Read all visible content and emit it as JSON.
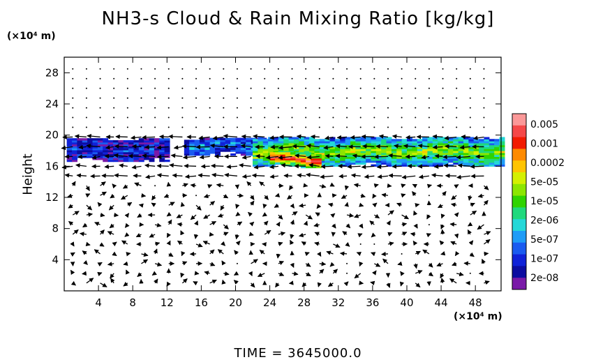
{
  "title": "NH3-s Cloud & Rain Mixing Ratio [kg/kg]",
  "y_unit": "(×10⁴ m)",
  "x_unit": "(×10⁴ m)",
  "footer_time": "TIME = 3645000.0",
  "chart_data": {
    "type": "heatmap",
    "title": "NH3-s Cloud & Rain Mixing Ratio [kg/kg]",
    "xlabel": "",
    "ylabel": "Height",
    "x_unit": "(×10⁴ m)",
    "y_unit": "(×10⁴ m)",
    "xlim": [
      0,
      51
    ],
    "ylim": [
      0,
      30
    ],
    "x_ticks": [
      4,
      8,
      12,
      16,
      20,
      24,
      28,
      32,
      36,
      40,
      44,
      48
    ],
    "y_ticks": [
      4,
      8,
      12,
      16,
      20,
      24,
      28
    ],
    "colorbar": {
      "labels": [
        "0.005",
        "0.001",
        "0.0002",
        "5e-05",
        "1e-05",
        "2e-06",
        "5e-07",
        "1e-07",
        "2e-08"
      ],
      "colors": [
        "#fb9898",
        "#f54848",
        "#f21b00",
        "#fe8a00",
        "#ffc400",
        "#d4f000",
        "#8ce600",
        "#2fd400",
        "#1fd97d",
        "#24d8d8",
        "#1e9cf7",
        "#1a5bf0",
        "#1022d8",
        "#0c0ca0",
        "#7a1aa8"
      ]
    },
    "layer_regions": [
      {
        "x_start": 0.3,
        "x_end": 12,
        "y_bottom": 16.6,
        "y_top": 19.4,
        "level": "1e-07"
      },
      {
        "x_start": 14,
        "x_end": 26,
        "y_bottom": 17.4,
        "y_top": 19.6,
        "level": "5e-07"
      },
      {
        "x_start": 22,
        "x_end": 51,
        "y_bottom": 16.0,
        "y_top": 19.6,
        "level": "1e-05"
      },
      {
        "x_start": 24,
        "x_end": 30,
        "y_bottom": 15.8,
        "y_top": 17.8,
        "level": "0.0002"
      }
    ],
    "footer": "TIME = 3645000.0"
  }
}
